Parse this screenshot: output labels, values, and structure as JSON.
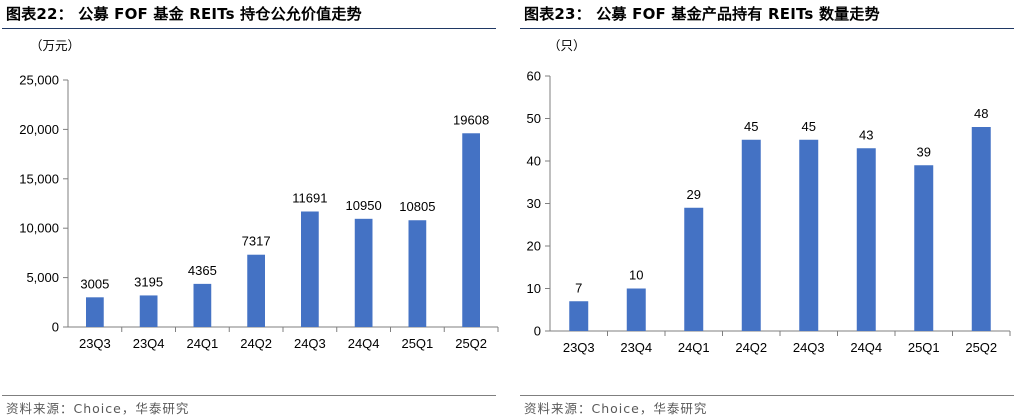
{
  "charts": [
    {
      "title": "图表22： 公募 FOF 基金 REITs 持仓公允价值走势",
      "source": "资料来源：Choice，华泰研究",
      "unit": "（万元）"
    },
    {
      "title": "图表23： 公募 FOF 基金产品持有 REITs 数量走势",
      "source": "资料来源：Choice，华泰研究",
      "unit": "（只）"
    }
  ],
  "chart_data": [
    {
      "type": "bar",
      "title": "公募 FOF 基金 REITs 持仓公允价值走势",
      "xlabel": "",
      "ylabel": "（万元）",
      "categories": [
        "23Q3",
        "23Q4",
        "24Q1",
        "24Q2",
        "24Q3",
        "24Q4",
        "25Q1",
        "25Q2"
      ],
      "values": [
        3005,
        3195,
        4365,
        7317,
        11691,
        10950,
        10805,
        19608
      ],
      "ylim": [
        0,
        25000
      ],
      "yticks": [
        0,
        5000,
        10000,
        15000,
        20000,
        25000
      ],
      "ytick_labels": [
        "0",
        "5,000",
        "10,000",
        "15,000",
        "20,000",
        "25,000"
      ],
      "grid": false,
      "bar_color": "#4472c4"
    },
    {
      "type": "bar",
      "title": "公募 FOF 基金产品持有 REITs 数量走势",
      "xlabel": "",
      "ylabel": "（只）",
      "categories": [
        "23Q3",
        "23Q4",
        "24Q1",
        "24Q2",
        "24Q3",
        "24Q4",
        "25Q1",
        "25Q2"
      ],
      "values": [
        7,
        10,
        29,
        45,
        45,
        43,
        39,
        48
      ],
      "ylim": [
        0,
        60
      ],
      "yticks": [
        0,
        10,
        20,
        30,
        40,
        50,
        60
      ],
      "ytick_labels": [
        "0",
        "10",
        "20",
        "30",
        "40",
        "50",
        "60"
      ],
      "grid": false,
      "bar_color": "#4472c4"
    }
  ]
}
